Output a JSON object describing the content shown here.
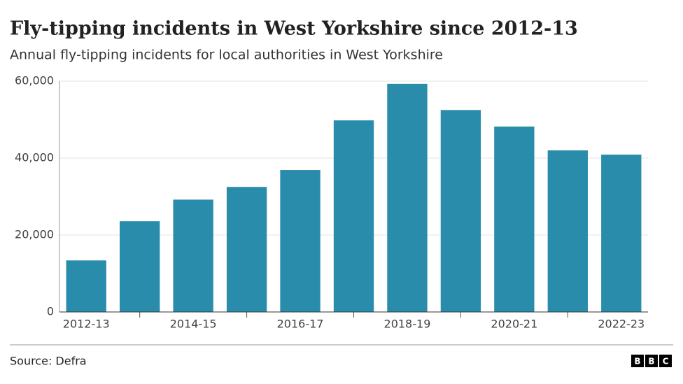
{
  "chart_data": {
    "type": "bar",
    "title": "Fly-tipping incidents in West Yorkshire since 2012-13",
    "subtitle": "Annual fly-tipping incidents for local authorities in West Yorkshire",
    "categories": [
      "2012-13",
      null,
      "2014-15",
      null,
      "2016-17",
      null,
      "2018-19",
      null,
      "2020-21",
      null,
      "2022-23"
    ],
    "values": [
      13400,
      23600,
      29200,
      32500,
      36900,
      49800,
      59300,
      52500,
      48200,
      42000,
      40900
    ],
    "color": "#2a8cab",
    "ylim": [
      0,
      60000
    ],
    "yticks": [
      0,
      {
        "value": 20000,
        "label": "20,000"
      },
      {
        "value": 40000,
        "label": "40,000"
      },
      {
        "value": 60000,
        "label": "60,000"
      }
    ],
    "grid": true,
    "source": "Source: Defra",
    "logo": [
      "B",
      "B",
      "C"
    ]
  }
}
